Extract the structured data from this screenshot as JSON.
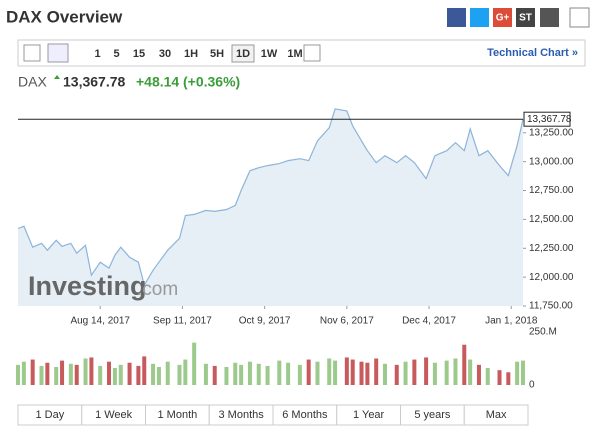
{
  "header": {
    "title": "DAX Overview",
    "share": [
      "G+",
      "ST"
    ]
  },
  "toolbar": {
    "intervals": [
      "1",
      "5",
      "15",
      "30",
      "1H",
      "5H",
      "1D",
      "1W",
      "1M"
    ],
    "selected": 6,
    "link": "Technical Chart »"
  },
  "quote": {
    "symbol": "DAX",
    "price": "13,367.78",
    "change": "+48.14",
    "change_pct": "(+0.36%)"
  },
  "watermark": [
    "Investing",
    ".com"
  ],
  "ranges": [
    "1 Day",
    "1 Week",
    "1 Month",
    "3 Months",
    "6 Months",
    "1 Year",
    "5 years",
    "Max"
  ],
  "chart_data": {
    "type": "area",
    "x": [
      "2017-07-17",
      "2017-07-19",
      "2017-07-22",
      "2017-07-25",
      "2017-07-27",
      "2017-07-30",
      "2017-08-01",
      "2017-08-04",
      "2017-08-06",
      "2017-08-09",
      "2017-08-11",
      "2017-08-14",
      "2017-08-17",
      "2017-08-19",
      "2017-08-21",
      "2017-08-24",
      "2017-08-27",
      "2017-08-29",
      "2017-09-01",
      "2017-09-03",
      "2017-09-06",
      "2017-09-10",
      "2017-09-12",
      "2017-09-15",
      "2017-09-19",
      "2017-09-22",
      "2017-09-26",
      "2017-09-29",
      "2017-10-01",
      "2017-10-04",
      "2017-10-07",
      "2017-10-10",
      "2017-10-14",
      "2017-10-17",
      "2017-10-21",
      "2017-10-24",
      "2017-10-27",
      "2017-10-31",
      "2017-11-02",
      "2017-11-06",
      "2017-11-08",
      "2017-11-11",
      "2017-11-13",
      "2017-11-16",
      "2017-11-19",
      "2017-11-23",
      "2017-11-26",
      "2017-11-29",
      "2017-12-03",
      "2017-12-06",
      "2017-12-10",
      "2017-12-13",
      "2017-12-16",
      "2017-12-18",
      "2017-12-21",
      "2017-12-24",
      "2017-12-28",
      "2017-12-31",
      "2018-01-03",
      "2018-01-05"
    ],
    "xlim": [
      "2017-07-17",
      "2018-01-05"
    ],
    "xticks": [
      {
        "value": "2017-08-14",
        "label": "Aug 14, 2017"
      },
      {
        "value": "2017-09-11",
        "label": "Sep 11, 2017"
      },
      {
        "value": "2017-10-09",
        "label": "Oct 9, 2017"
      },
      {
        "value": "2017-11-06",
        "label": "Nov 6, 2017"
      },
      {
        "value": "2017-12-04",
        "label": "Dec 4, 2017"
      },
      {
        "value": "2018-01-01",
        "label": "Jan 1, 2018"
      }
    ],
    "ylim": [
      11750,
      13534
    ],
    "yticks": [
      {
        "value": 11750,
        "label": "11,750.00"
      },
      {
        "value": 12000,
        "label": "12,000.00"
      },
      {
        "value": 12250,
        "label": "12,250.00"
      },
      {
        "value": 12500,
        "label": "12,500.00"
      },
      {
        "value": 12750,
        "label": "12,750.00"
      },
      {
        "value": 13000,
        "label": "13,000.00"
      },
      {
        "value": 13250,
        "label": "13,250.00"
      }
    ],
    "y2lim": [
      0,
      250000000
    ],
    "y2ticks": [
      {
        "value": 0,
        "label": "0"
      },
      {
        "value": 250000000,
        "label": "250.M"
      }
    ],
    "last": {
      "value": 13367.78,
      "label": "13,367.78"
    },
    "series": [
      {
        "color": "#8db4d9",
        "fill": "#e6eef6",
        "values": [
          12421,
          12440,
          12259,
          12293,
          12233,
          12319,
          12267,
          12293,
          12207,
          12276,
          12017,
          12129,
          12078,
          12190,
          12259,
          12172,
          12129,
          11931,
          12060,
          12129,
          12233,
          12336,
          12534,
          12543,
          12578,
          12569,
          12586,
          12621,
          12750,
          12922,
          12948,
          12966,
          12983,
          13009,
          13026,
          13009,
          13181,
          13293,
          13457,
          13440,
          13310,
          13181,
          13095,
          12991,
          13052,
          12991,
          13052,
          12991,
          12853,
          13052,
          13095,
          13164,
          13095,
          13284,
          13052,
          13095,
          12966,
          12879,
          13138,
          13367.78
        ]
      },
      {
        "type": "bar",
        "axis": "y2",
        "values": [
          95000000,
          110000000,
          120000000,
          90000000,
          105000000,
          85000000,
          115000000,
          100000000,
          95000000,
          125000000,
          130000000,
          90000000,
          110000000,
          80000000,
          95000000,
          105000000,
          90000000,
          135000000,
          100000000,
          85000000,
          110000000,
          95000000,
          120000000,
          200000000,
          100000000,
          90000000,
          85000000,
          105000000,
          95000000,
          110000000,
          100000000,
          90000000,
          115000000,
          105000000,
          95000000,
          120000000,
          110000000,
          125000000,
          115000000,
          130000000,
          120000000,
          110000000,
          105000000,
          125000000,
          100000000,
          95000000,
          110000000,
          120000000,
          130000000,
          105000000,
          115000000,
          125000000,
          190000000,
          120000000,
          95000000,
          80000000,
          70000000,
          60000000,
          110000000,
          115000000
        ],
        "colors": [
          "#9cc98c",
          "#9cc98c",
          "#c75a5c",
          "#9cc98c",
          "#c75a5c",
          "#9cc98c",
          "#c75a5c",
          "#9cc98c",
          "#c75a5c",
          "#9cc98c",
          "#c75a5c",
          "#9cc98c",
          "#c75a5c",
          "#9cc98c",
          "#9cc98c",
          "#c75a5c",
          "#c75a5c",
          "#c75a5c",
          "#9cc98c",
          "#9cc98c",
          "#9cc98c",
          "#9cc98c",
          "#9cc98c",
          "#9cc98c",
          "#9cc98c",
          "#c75a5c",
          "#9cc98c",
          "#9cc98c",
          "#9cc98c",
          "#9cc98c",
          "#9cc98c",
          "#9cc98c",
          "#9cc98c",
          "#9cc98c",
          "#9cc98c",
          "#c75a5c",
          "#9cc98c",
          "#9cc98c",
          "#9cc98c",
          "#c75a5c",
          "#c75a5c",
          "#c75a5c",
          "#c75a5c",
          "#c75a5c",
          "#9cc98c",
          "#c75a5c",
          "#9cc98c",
          "#c75a5c",
          "#c75a5c",
          "#9cc98c",
          "#9cc98c",
          "#9cc98c",
          "#c75a5c",
          "#9cc98c",
          "#c75a5c",
          "#9cc98c",
          "#c75a5c",
          "#c75a5c",
          "#9cc98c",
          "#9cc98c"
        ]
      }
    ]
  }
}
